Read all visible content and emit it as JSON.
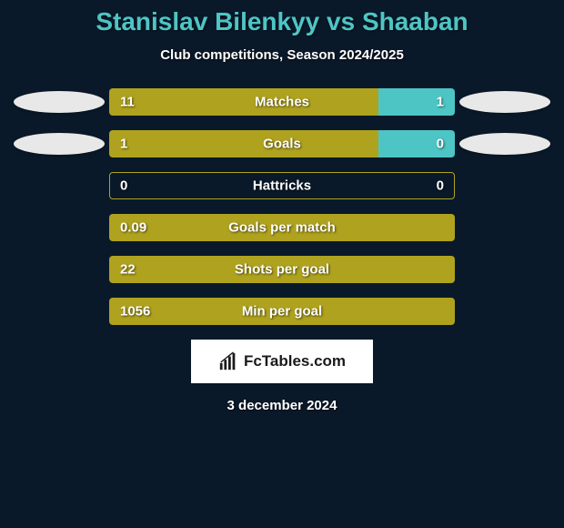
{
  "title": "Stanislav Bilenkyy vs Shaaban",
  "subtitle": "Club competitions, Season 2024/2025",
  "date": "3 december 2024",
  "logo_text": "FcTables.com",
  "colors": {
    "background": "#0a1929",
    "title": "#4ec5c5",
    "text": "#ffffff",
    "bar_left": "#afa21e",
    "bar_right": "#4ec5c5",
    "ellipse": "#e8e8e8",
    "logo_bg": "#ffffff",
    "logo_text": "#1a1a1a"
  },
  "stats": [
    {
      "label": "Matches",
      "left_value": "11",
      "right_value": "1",
      "left_pct": 78,
      "right_pct": 22,
      "show_ellipses": true,
      "style": "split"
    },
    {
      "label": "Goals",
      "left_value": "1",
      "right_value": "0",
      "left_pct": 78,
      "right_pct": 22,
      "show_ellipses": true,
      "style": "split"
    },
    {
      "label": "Hattricks",
      "left_value": "0",
      "right_value": "0",
      "left_pct": 0,
      "right_pct": 0,
      "show_ellipses": false,
      "style": "outline"
    },
    {
      "label": "Goals per match",
      "left_value": "0.09",
      "right_value": "",
      "left_pct": 100,
      "right_pct": 0,
      "show_ellipses": false,
      "style": "full"
    },
    {
      "label": "Shots per goal",
      "left_value": "22",
      "right_value": "",
      "left_pct": 100,
      "right_pct": 0,
      "show_ellipses": false,
      "style": "full"
    },
    {
      "label": "Min per goal",
      "left_value": "1056",
      "right_value": "",
      "left_pct": 100,
      "right_pct": 0,
      "show_ellipses": false,
      "style": "full"
    }
  ]
}
